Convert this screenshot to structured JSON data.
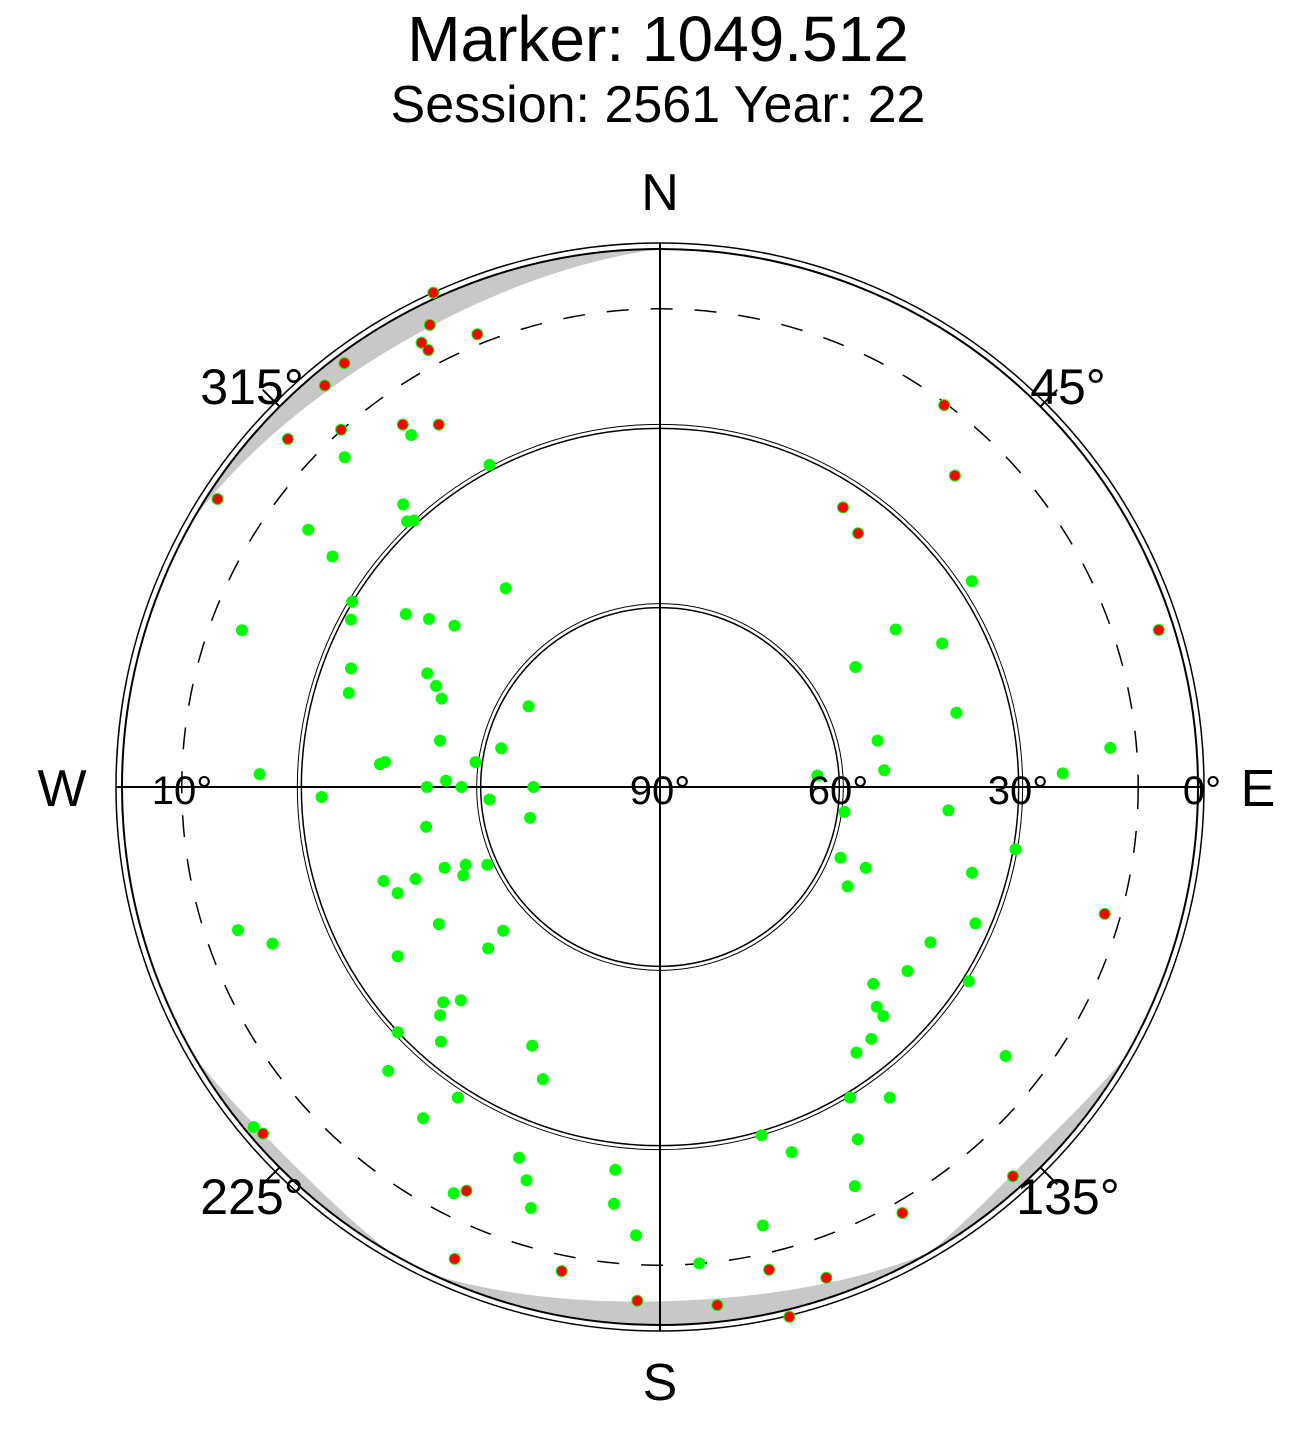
{
  "title": "Marker: 1049.512",
  "subtitle": "Session: 2561 Year: 22",
  "chart_data": {
    "type": "scatter",
    "projection": "polar-skyplot",
    "direction_labels": {
      "north": "N",
      "south": "S",
      "east": "E",
      "west": "W"
    },
    "azimuth_labels": [
      "45°",
      "135°",
      "225°",
      "315°"
    ],
    "elevation_labels": [
      "0°",
      "30°",
      "60°",
      "90°",
      "10°"
    ],
    "elevation_rings_deg": [
      30,
      60
    ],
    "cutoff_ring_deg": 10,
    "grid": true,
    "colors": {
      "track": "#00ff00",
      "flagged": "#ff0000",
      "mask": "#c8c8c8",
      "axis": "#000000"
    },
    "series": [
      {
        "color": "#00ff00",
        "values": [
          [
            43,
            30,
            41
          ],
          [
            40,
            50,
            49
          ],
          [
            37,
            75,
            60
          ],
          [
            36,
            100,
            66
          ],
          [
            38,
            125,
            61
          ],
          [
            40,
            140,
            47
          ],
          [
            42,
            150,
            30
          ],
          [
            44,
            156,
            12
          ],
          [
            28,
            40,
            22
          ],
          [
            28,
            60,
            42
          ],
          [
            28,
            85,
            58
          ],
          [
            27,
            115,
            58
          ],
          [
            27,
            140,
            42
          ],
          [
            28,
            155,
            25
          ],
          [
            29,
            165,
            5
          ],
          [
            18,
            30,
            36
          ],
          [
            20,
            55,
            55
          ],
          [
            22,
            85,
            68
          ],
          [
            24,
            115,
            62
          ],
          [
            26,
            140,
            40
          ],
          [
            28,
            158,
            18
          ],
          [
            30,
            170,
            0
          ],
          [
            14,
            35,
            12
          ],
          [
            15,
            55,
            30
          ],
          [
            16,
            75,
            42
          ],
          [
            17,
            95,
            45
          ],
          [
            19,
            115,
            36
          ],
          [
            21,
            130,
            20
          ],
          [
            22,
            140,
            5
          ],
          [
            20,
            170,
            8
          ],
          [
            19,
            190,
            25
          ],
          [
            18,
            210,
            40
          ],
          [
            17,
            230,
            48
          ],
          [
            16,
            250,
            52
          ],
          [
            15,
            270,
            48
          ],
          [
            14,
            290,
            32
          ],
          [
            13,
            305,
            15
          ],
          [
            12,
            312,
            3
          ],
          [
            10,
            175,
            3
          ],
          [
            8,
            200,
            20
          ],
          [
            7,
            225,
            36
          ],
          [
            7,
            250,
            45
          ],
          [
            9,
            275,
            42
          ],
          [
            11,
            300,
            28
          ],
          [
            12,
            315,
            12
          ],
          [
            13,
            322,
            0
          ],
          [
            33,
            210,
            12
          ],
          [
            33,
            230,
            34
          ],
          [
            34,
            250,
            52
          ],
          [
            34,
            270,
            62
          ],
          [
            35,
            295,
            58
          ],
          [
            37,
            315,
            43
          ],
          [
            39,
            326,
            25
          ],
          [
            40,
            333,
            5
          ],
          [
            -4,
            182,
            4
          ],
          [
            -5,
            200,
            24
          ],
          [
            -6,
            222,
            42
          ],
          [
            -6,
            245,
            55
          ],
          [
            -6,
            270,
            58
          ],
          [
            -6,
            295,
            50
          ],
          [
            -5,
            318,
            30
          ],
          [
            -4,
            334,
            4
          ],
          [
            -8,
            185,
            20
          ],
          [
            -9,
            200,
            38
          ],
          [
            -11,
            225,
            56
          ],
          [
            -12,
            255,
            70
          ],
          [
            -12,
            285,
            65
          ],
          [
            -11,
            310,
            48
          ],
          [
            -10,
            330,
            20
          ],
          [
            -18,
            189,
            8
          ],
          [
            -19,
            210,
            30
          ],
          [
            -21,
            235,
            50
          ],
          [
            -23,
            265,
            66
          ],
          [
            -24,
            295,
            55
          ],
          [
            -25,
            320,
            32
          ],
          [
            -26,
            335,
            8
          ],
          [
            -28,
            200,
            6
          ],
          [
            -28,
            220,
            28
          ],
          [
            -29,
            245,
            48
          ],
          [
            -29,
            272,
            60
          ],
          [
            -30,
            300,
            52
          ],
          [
            -30,
            322,
            30
          ],
          [
            -31,
            336,
            10
          ],
          [
            -38,
            210,
            26
          ],
          [
            -38,
            232,
            44
          ],
          [
            -39,
            258,
            58
          ],
          [
            -39,
            285,
            60
          ],
          [
            -40,
            310,
            45
          ],
          [
            -40,
            330,
            20
          ],
          [
            -42,
            225,
            8
          ],
          [
            -43,
            245,
            28
          ],
          [
            -43,
            268,
            42
          ],
          [
            -44,
            290,
            44
          ],
          [
            -44,
            310,
            30
          ],
          [
            -45,
            325,
            8
          ],
          [
            -14,
            205,
            15
          ],
          [
            -14,
            225,
            32
          ],
          [
            -15,
            250,
            44
          ],
          [
            -15,
            275,
            46
          ],
          [
            -16,
            300,
            34
          ],
          [
            -16,
            320,
            12
          ],
          [
            -24,
            228,
            5
          ],
          [
            -24,
            250,
            20
          ],
          [
            -25,
            272,
            28
          ],
          [
            -25,
            292,
            20
          ],
          [
            -26,
            305,
            6
          ],
          [
            -33,
            192,
            18
          ],
          [
            -34,
            215,
            38
          ],
          [
            -35,
            245,
            58
          ],
          [
            -36,
            280,
            66
          ],
          [
            -37,
            312,
            48
          ],
          [
            -38,
            330,
            22
          ],
          [
            -39,
            340,
            2
          ],
          [
            -2,
            175,
            10
          ],
          [
            -1,
            160,
            25
          ],
          [
            0,
            140,
            35
          ],
          [
            1,
            120,
            38
          ],
          [
            2,
            100,
            30
          ],
          [
            3,
            85,
            15
          ],
          [
            8,
            168,
            15
          ],
          [
            9,
            150,
            30
          ],
          [
            10,
            128,
            40
          ],
          [
            11,
            106,
            38
          ],
          [
            12,
            88,
            25
          ],
          [
            13,
            72,
            5
          ],
          [
            -20,
            180,
            15
          ],
          [
            -21,
            160,
            28
          ],
          [
            -22,
            140,
            32
          ],
          [
            -23,
            120,
            25
          ],
          [
            -24,
            105,
            8
          ]
        ]
      },
      {
        "color": "#ff0000",
        "values": [
          [
            44,
            156,
            12
          ],
          [
            29,
            165,
            5
          ],
          [
            30,
            170,
            0
          ],
          [
            22,
            140,
            5
          ],
          [
            12,
            312,
            3
          ],
          [
            13,
            322,
            0
          ],
          [
            40,
            333,
            5
          ],
          [
            -4,
            334,
            4
          ],
          [
            -26,
            335,
            8
          ],
          [
            -31,
            336,
            10
          ],
          [
            -39,
            340,
            2
          ],
          [
            -45,
            325,
            8
          ],
          [
            -42,
            225,
            8
          ],
          [
            -28,
            200,
            6
          ],
          [
            -18,
            189,
            8
          ],
          [
            -4,
            182,
            4
          ],
          [
            10,
            175,
            3
          ],
          [
            20,
            170,
            8
          ],
          [
            13,
            72,
            5
          ],
          [
            -24,
            105,
            8
          ],
          [
            -26,
            305,
            6
          ],
          [
            -16,
            320,
            12
          ],
          [
            -40,
            330,
            20
          ],
          [
            -10,
            330,
            20
          ],
          [
            43,
            30,
            41
          ],
          [
            28,
            40,
            22
          ],
          [
            18,
            30,
            36
          ],
          [
            14,
            35,
            12
          ],
          [
            33,
            210,
            12
          ]
        ]
      }
    ]
  }
}
